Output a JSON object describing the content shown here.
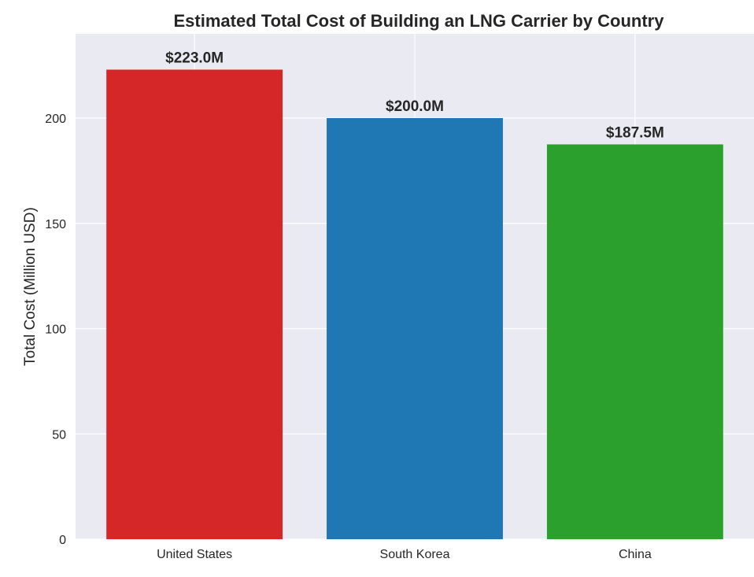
{
  "chart_data": {
    "type": "bar",
    "title": "Estimated Total Cost of Building an LNG Carrier by Country",
    "xlabel": "",
    "ylabel": "Total Cost (Million USD)",
    "categories": [
      "United States",
      "South Korea",
      "China"
    ],
    "values": [
      223.0,
      200.0,
      187.5
    ],
    "data_labels": [
      "$223.0M",
      "$200.0M",
      "$187.5M"
    ],
    "colors": [
      "#d62728",
      "#1f77b4",
      "#2ca02c"
    ],
    "ylim": [
      0,
      240
    ],
    "yticks": [
      0,
      50,
      100,
      150,
      200
    ],
    "ytick_labels": [
      "0",
      "50",
      "100",
      "150",
      "200"
    ],
    "grid": true,
    "background": "#eaeaf2",
    "grid_color": "#ffffff"
  }
}
